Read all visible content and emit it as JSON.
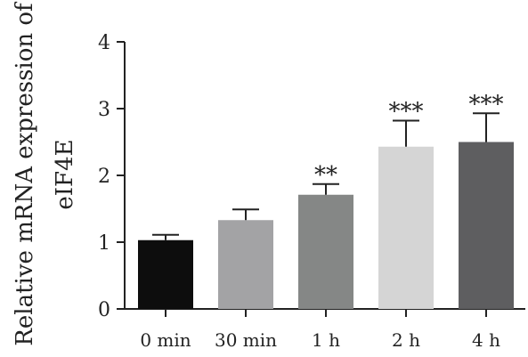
{
  "chart_data": {
    "type": "bar",
    "categories": [
      "0 min",
      "30 min",
      "1 h",
      "2 h",
      "4 h"
    ],
    "values": [
      1.03,
      1.33,
      1.71,
      2.43,
      2.5
    ],
    "errors": [
      0.08,
      0.16,
      0.16,
      0.39,
      0.43
    ],
    "significance": [
      "",
      "",
      "**",
      "***",
      "***"
    ],
    "colors": [
      "#0d0d0d",
      "#a3a3a5",
      "#858786",
      "#d5d5d5",
      "#5e5e60"
    ],
    "ylabel_line1": "Relative mRNA expression of",
    "ylabel_line2": "eIF4E",
    "ylim": [
      0,
      4
    ],
    "yticks": [
      0,
      1,
      2,
      3,
      4
    ],
    "grid": false
  }
}
